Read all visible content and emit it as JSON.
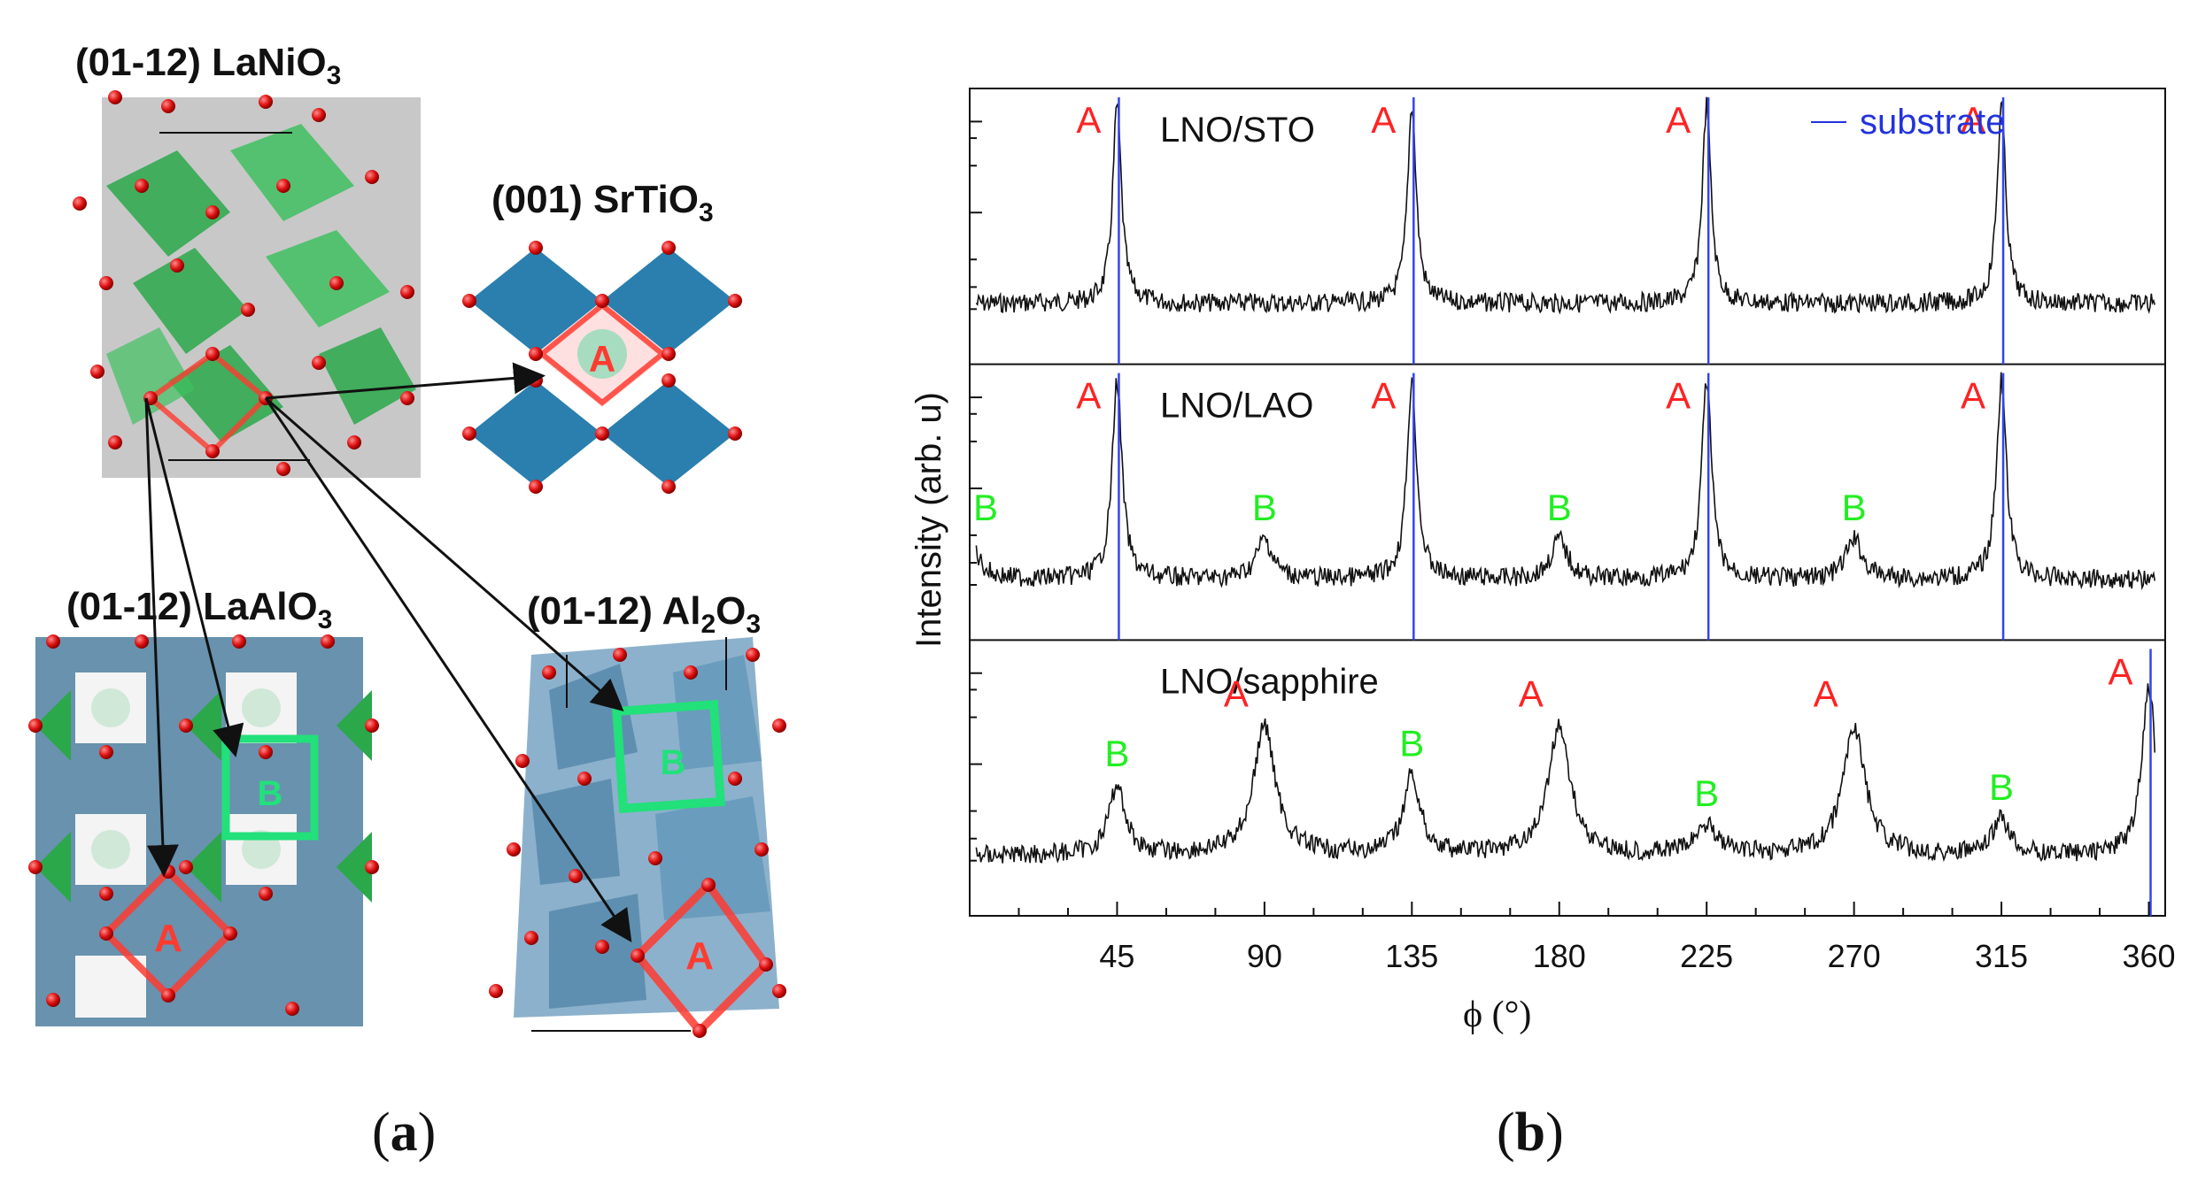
{
  "panel_a": {
    "caption_open": "(",
    "caption_letter": "a",
    "caption_close": ")",
    "structures": {
      "lanio3": {
        "plane": "(01-12)",
        "formula": "LaNiO",
        "sub": "3"
      },
      "srtio3": {
        "plane": "(001)",
        "formula": "SrTiO",
        "sub": "3"
      },
      "laalo3": {
        "plane": "(01-12)",
        "formula": "LaAlO",
        "sub": "3"
      },
      "al2o3": {
        "plane": "(01-12)",
        "formula": "Al",
        "sub1": "2",
        "formula2": "O",
        "sub": "3"
      }
    },
    "marker_a": "A",
    "marker_b": "B",
    "colors": {
      "marker_a": "#ff3b30",
      "marker_b": "#22e07a",
      "octa_green": "#2aa84a",
      "octa_blue": "#2a7fae",
      "octa_gray": "#8f8f8f",
      "oxygen": "#dd1111"
    }
  },
  "panel_b": {
    "caption_open": "(",
    "caption_letter": "b",
    "caption_close": ")"
  },
  "chart_data": {
    "type": "line",
    "title": "",
    "xlabel": "ϕ (°)",
    "ylabel": "Intensity (arb. u)",
    "xlim": [
      0,
      365
    ],
    "x_ticks": [
      45,
      90,
      135,
      180,
      225,
      270,
      315,
      360
    ],
    "y_scale": "log",
    "legend": {
      "label": "substrate",
      "position": "top-right",
      "color": "#2233dd"
    },
    "colors": {
      "trace": "#111111",
      "substrate": "#3344ee",
      "peak_a": "#ff2222",
      "peak_b": "#22ee22"
    },
    "panels": [
      {
        "name": "LNO/STO",
        "substrate_lines": [
          45,
          135,
          225,
          315
        ],
        "peaks": [
          {
            "x": 45,
            "label": "A",
            "height": 1.0,
            "width": 1.6
          },
          {
            "x": 135,
            "label": "A",
            "height": 1.0,
            "width": 1.6
          },
          {
            "x": 225,
            "label": "A",
            "height": 1.0,
            "width": 1.6
          },
          {
            "x": 315,
            "label": "A",
            "height": 1.0,
            "width": 1.6
          }
        ]
      },
      {
        "name": "LNO/LAO",
        "substrate_lines": [
          45,
          135,
          225,
          315
        ],
        "peaks": [
          {
            "x": 0,
            "label": "B",
            "height": 0.2,
            "width": 3
          },
          {
            "x": 45,
            "label": "A",
            "height": 1.0,
            "width": 1.8
          },
          {
            "x": 90,
            "label": "B",
            "height": 0.2,
            "width": 3
          },
          {
            "x": 135,
            "label": "A",
            "height": 1.0,
            "width": 1.8
          },
          {
            "x": 180,
            "label": "B",
            "height": 0.2,
            "width": 3
          },
          {
            "x": 225,
            "label": "A",
            "height": 1.0,
            "width": 1.8
          },
          {
            "x": 270,
            "label": "B",
            "height": 0.2,
            "width": 3
          },
          {
            "x": 315,
            "label": "A",
            "height": 1.0,
            "width": 1.8
          }
        ]
      },
      {
        "name": "LNO/sapphire",
        "substrate_lines": [
          360
        ],
        "peaks": [
          {
            "x": 45,
            "label": "B",
            "height": 0.35,
            "width": 3
          },
          {
            "x": 90,
            "label": "A",
            "height": 0.65,
            "width": 4
          },
          {
            "x": 135,
            "label": "B",
            "height": 0.4,
            "width": 3
          },
          {
            "x": 180,
            "label": "A",
            "height": 0.65,
            "width": 4
          },
          {
            "x": 225,
            "label": "B",
            "height": 0.15,
            "width": 4
          },
          {
            "x": 270,
            "label": "A",
            "height": 0.65,
            "width": 4
          },
          {
            "x": 315,
            "label": "B",
            "height": 0.18,
            "width": 3
          },
          {
            "x": 360,
            "label": "A",
            "height": 0.85,
            "width": 2.5
          }
        ]
      }
    ]
  }
}
